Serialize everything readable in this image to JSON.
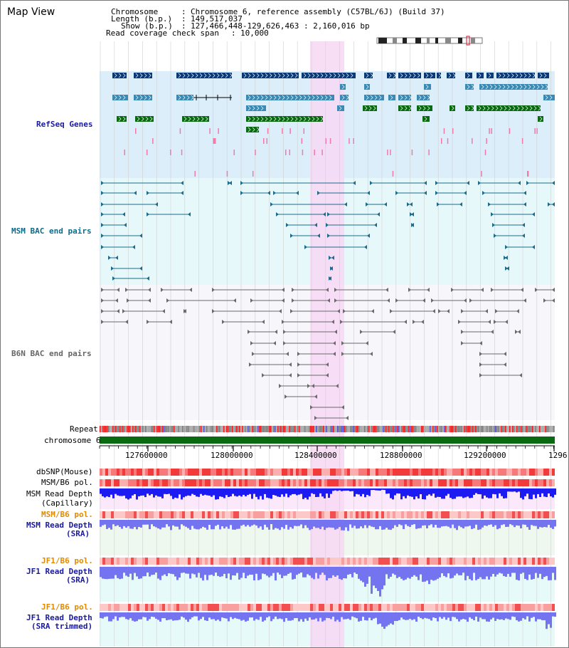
{
  "app": {
    "title": "Map View"
  },
  "header": {
    "chromosome_label": "Chromosome",
    "chromosome_value": "Chromosome 6, reference assembly (C57BL/6J) (Build 37)",
    "length_label": "Length (b.p.)",
    "length_value": "149,517,037",
    "show_label": "Show (b.p.)",
    "show_value": "127,466,448-129,626,463 : 2,160,016 bp",
    "span_label": "Read coverage check span",
    "span_value": "10,000"
  },
  "tracks": {
    "refseq": "RefSeq Genes",
    "msm_bac": "MSM BAC end pairs",
    "b6n_bac": "B6N BAC end pairs",
    "repeat": "Repeat",
    "chromosome": "chromosome 6",
    "dbsnp": "dbSNP(Mouse)",
    "msm_b6_pol_1": "MSM/B6 pol.",
    "msm_depth_cap_1": "MSM Read Depth",
    "msm_depth_cap_2": "(Capillary)",
    "msm_b6_pol_2": "MSM/B6 pol.",
    "msm_depth_sra_1": "MSM Read Depth",
    "msm_depth_sra_2": "(SRA)",
    "jf1_b6_pol_1": "JF1/B6 pol.",
    "jf1_depth_sra_1": "JF1 Read Depth",
    "jf1_depth_sra_2": "(SRA)",
    "jf1_b6_pol_2": "JF1/B6 pol.",
    "jf1_depth_trim_1": "JF1 Read Depth",
    "jf1_depth_trim_2": "(SRA trimmed)"
  },
  "axis": {
    "ticks": [
      "127600000",
      "128000000",
      "128400000",
      "128800000",
      "129200000",
      "1296"
    ]
  },
  "colors": {
    "refseq_bg": "#dceefa",
    "msm_bg": "#e6f8fa",
    "b6n_bg": "#f6f6fb",
    "highlight": "#f7d8f3",
    "gene_dark": "#0a3a78",
    "gene_mid": "#3b8ab6",
    "gene_green": "#0a6a12",
    "pink_tick": "#f07aa8",
    "msm_pair": "#1a6b8c",
    "b6n_pair": "#6a6a6a",
    "chrom_bar": "#0a6a12",
    "depth_blue": "#1c1cf2",
    "depth_light": "#7474f0",
    "label_blue": "#1a1aa0",
    "label_orange": "#e28a00",
    "label_teal": "#0a6b8c"
  }
}
